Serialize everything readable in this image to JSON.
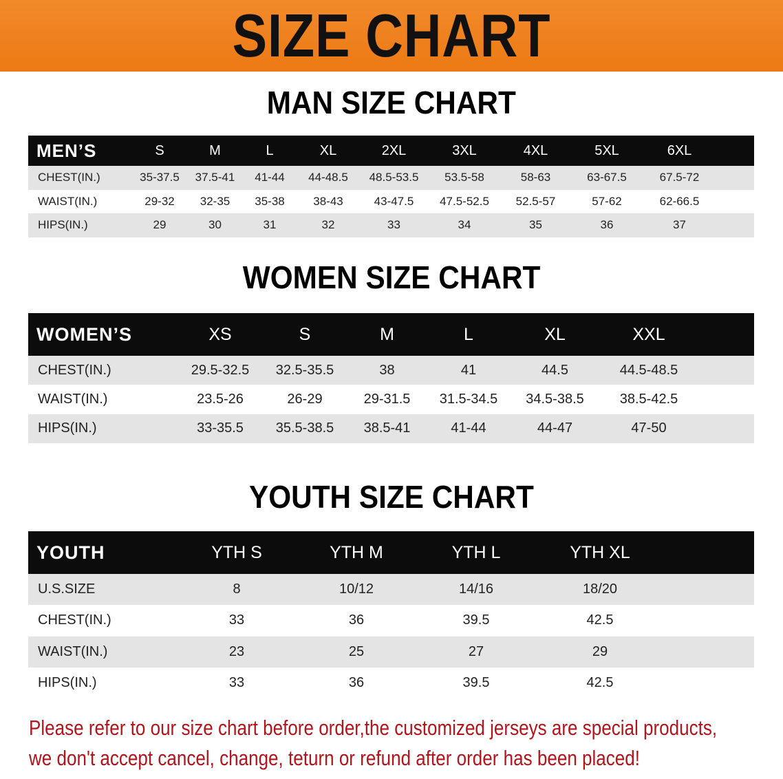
{
  "banner": {
    "title": "SIZE CHART",
    "color": "#ee7f1c"
  },
  "men": {
    "title": "MAN SIZE CHART",
    "header": [
      "MEN’S",
      "S",
      "M",
      "L",
      "XL",
      "2XL",
      "3XL",
      "4XL",
      "5XL",
      "6XL"
    ],
    "rows": [
      [
        "CHEST(IN.)",
        "35-37.5",
        "37.5-41",
        "41-44",
        "44-48.5",
        "48.5-53.5",
        "53.5-58",
        "58-63",
        "63-67.5",
        "67.5-72"
      ],
      [
        "WAIST(IN.)",
        "29-32",
        "32-35",
        "35-38",
        "38-43",
        "43-47.5",
        "47.5-52.5",
        "52.5-57",
        "57-62",
        "62-66.5"
      ],
      [
        "HIPS(IN.)",
        "29",
        "30",
        "31",
        "32",
        "33",
        "34",
        "35",
        "36",
        "37"
      ]
    ]
  },
  "women": {
    "title": "WOMEN SIZE CHART",
    "header": [
      "WOMEN’S",
      "XS",
      "S",
      "M",
      "L",
      "XL",
      "XXL"
    ],
    "rows": [
      [
        "CHEST(IN.)",
        "29.5-32.5",
        "32.5-35.5",
        "38",
        "41",
        "44.5",
        "44.5-48.5"
      ],
      [
        "WAIST(IN.)",
        "23.5-26",
        "26-29",
        "29-31.5",
        "31.5-34.5",
        "34.5-38.5",
        "38.5-42.5"
      ],
      [
        "HIPS(IN.)",
        "33-35.5",
        "35.5-38.5",
        "38.5-41",
        "41-44",
        "44-47",
        "47-50"
      ]
    ]
  },
  "youth": {
    "title": "YOUTH SIZE CHART",
    "header": [
      "YOUTH",
      "YTH S",
      "YTH M",
      "YTH L",
      "YTH XL"
    ],
    "rows": [
      [
        "U.S.SIZE",
        "8",
        "10/12",
        "14/16",
        "18/20"
      ],
      [
        "CHEST(IN.)",
        "33",
        "36",
        "39.5",
        "42.5"
      ],
      [
        "WAIST(IN.)",
        "23",
        "25",
        "27",
        "29"
      ],
      [
        "HIPS(IN.)",
        "33",
        "36",
        "39.5",
        "42.5"
      ]
    ]
  },
  "note": {
    "line1": "Please refer to our size chart before order,the customized jerseys are special products,",
    "line2": "we don't accept cancel, change, teturn or refund after order has been placed!",
    "color": "#b0161b"
  }
}
